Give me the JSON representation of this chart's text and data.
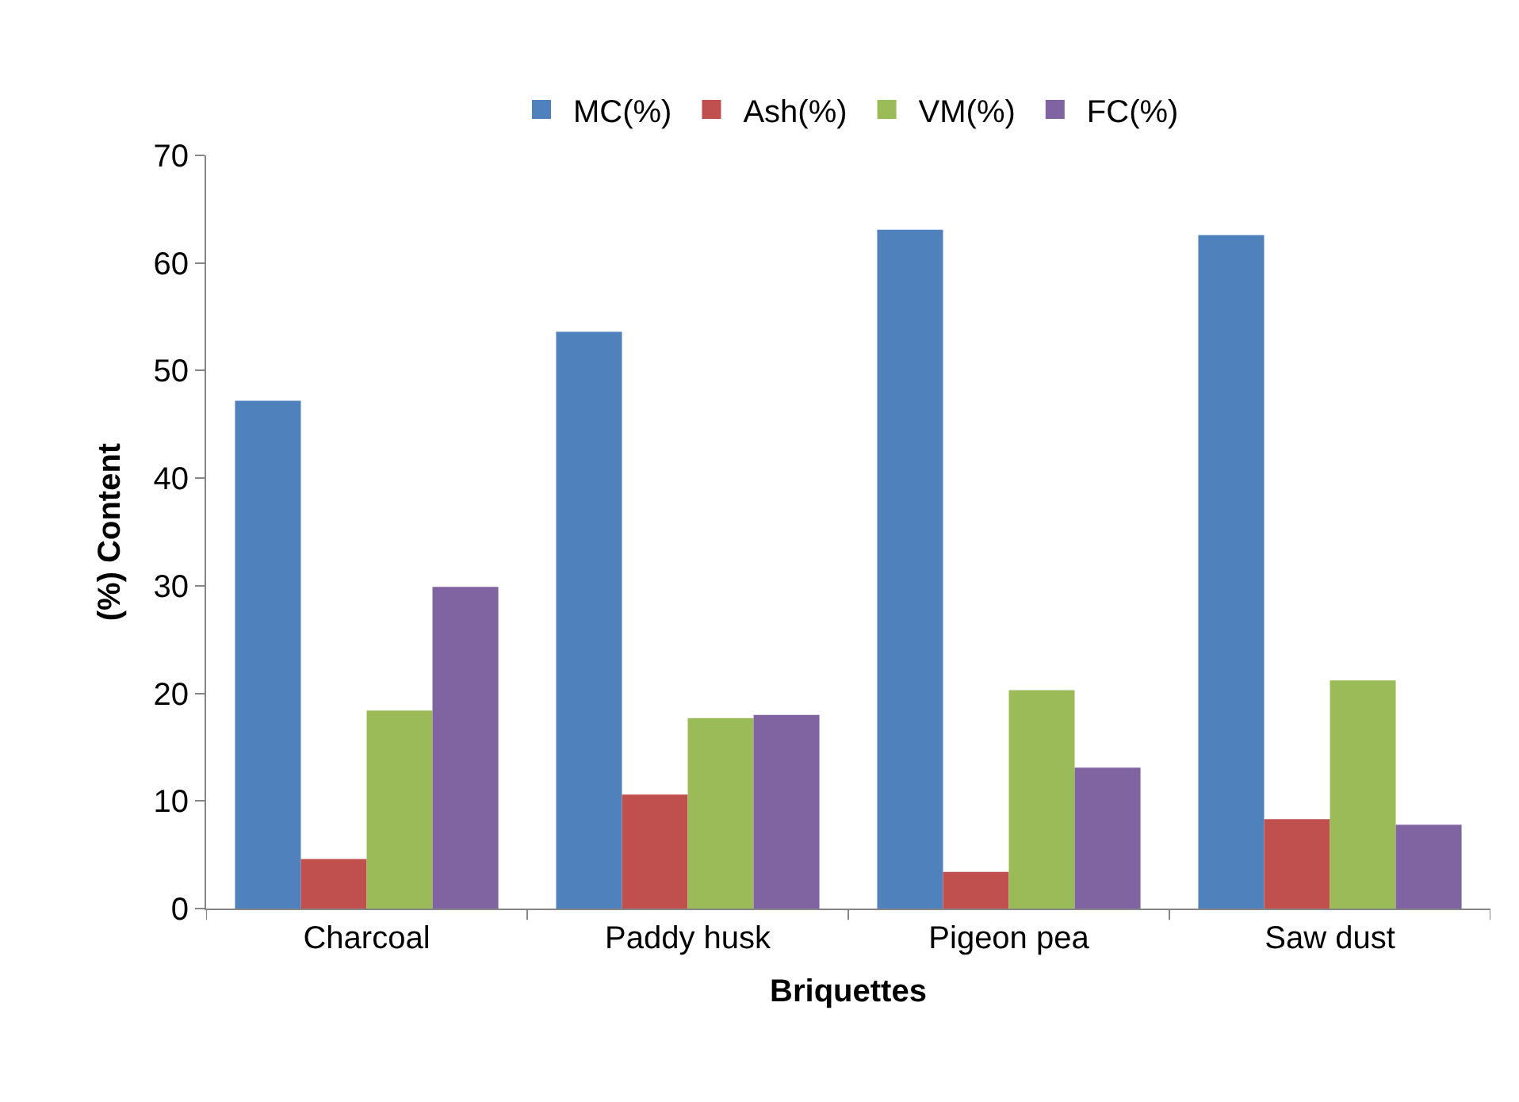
{
  "chart_data": {
    "type": "bar",
    "xlabel": "Briquettes",
    "ylabel": "(%) Content",
    "categories": [
      "Charcoal",
      "Paddy husk",
      "Pigeon pea",
      "Saw dust"
    ],
    "series": [
      {
        "name": "MC(%)",
        "color": "#4f81bd",
        "values": [
          47.2,
          53.6,
          63.1,
          62.6
        ]
      },
      {
        "name": "Ash(%)",
        "color": "#c0504d",
        "values": [
          4.6,
          10.6,
          3.4,
          8.3
        ]
      },
      {
        "name": "VM(%)",
        "color": "#9bbb59",
        "values": [
          18.4,
          17.7,
          20.3,
          21.2
        ]
      },
      {
        "name": "FC(%)",
        "color": "#8064a2",
        "values": [
          29.9,
          18.0,
          13.1,
          7.8
        ]
      }
    ],
    "ylim": [
      0,
      70
    ],
    "yticks": [
      0,
      10,
      20,
      30,
      40,
      50,
      60,
      70
    ],
    "legend": "top"
  }
}
